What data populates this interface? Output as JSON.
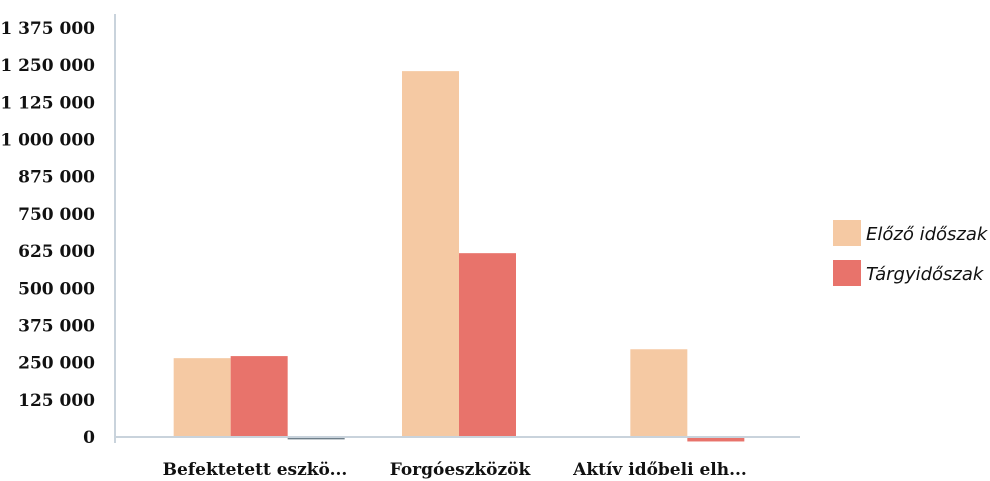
{
  "chart_data": {
    "type": "bar",
    "categories": [
      "Befektetett eszkö...",
      "Forgóeszközök",
      "Aktív időbeli elh..."
    ],
    "series": [
      {
        "name": "Előző időszak",
        "values": [
          265000,
          1230000,
          295000
        ],
        "color": "#f5c9a3"
      },
      {
        "name": "Tárgyidőszak",
        "values": [
          272000,
          618000,
          -15000
        ],
        "color": "#e8736b"
      },
      {
        "name": "",
        "values": [
          -8000,
          0,
          0
        ],
        "color": "#6f7f8a"
      }
    ],
    "y_ticks": [
      "0",
      "125 000",
      "250 000",
      "375 000",
      "500 000",
      "625 000",
      "750 000",
      "875 000",
      "1 000 000",
      "1 125 000",
      "1 250 000",
      "1 375 000"
    ],
    "ylim": [
      0,
      1375000
    ],
    "legend_position": "right",
    "grid": false,
    "title": "",
    "xlabel": "",
    "ylabel": ""
  }
}
